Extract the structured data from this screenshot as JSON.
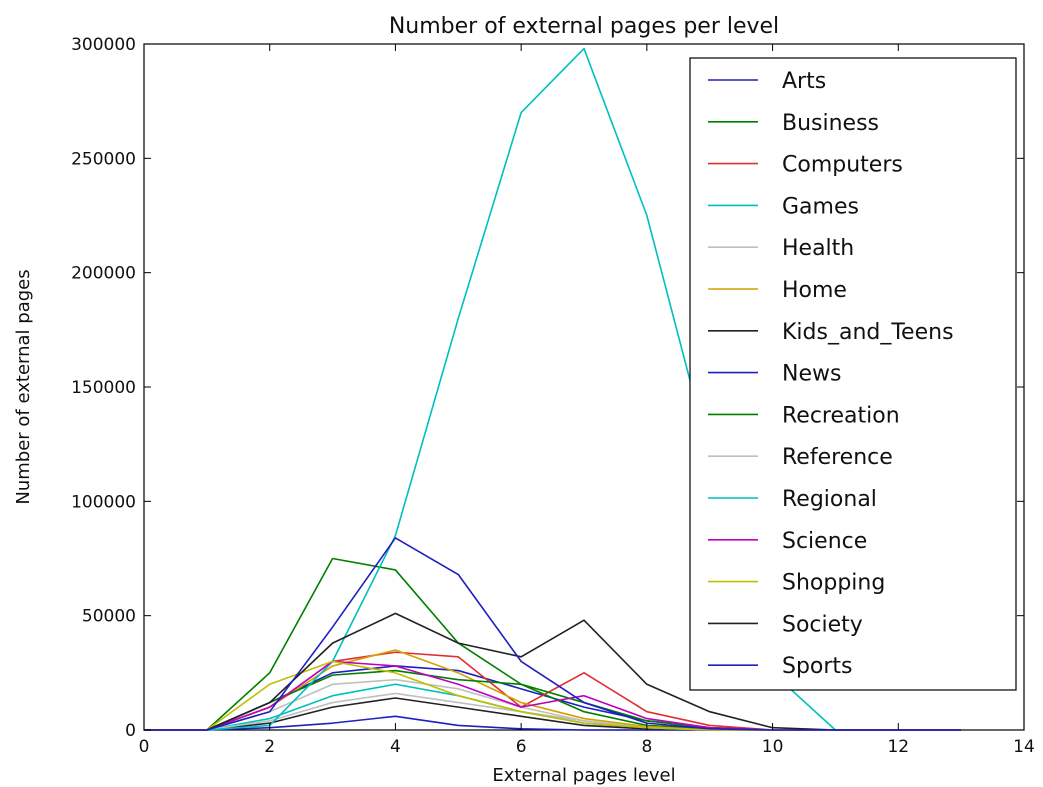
{
  "chart_data": {
    "type": "line",
    "title": "Number of external pages per level",
    "xlabel": "External pages level",
    "ylabel": "Number of external pages",
    "xlim": [
      0,
      14
    ],
    "ylim": [
      0,
      300000
    ],
    "xticks": [
      0,
      2,
      4,
      6,
      8,
      10,
      12,
      14
    ],
    "yticks": [
      0,
      50000,
      100000,
      150000,
      200000,
      250000,
      300000
    ],
    "legend_position": "upper-right",
    "grid": false,
    "x": [
      0,
      1,
      2,
      3,
      4,
      5,
      6,
      7,
      8,
      9,
      10,
      11,
      12,
      13
    ],
    "series": [
      {
        "name": "Arts",
        "color": "#1f1fbf",
        "values": [
          0,
          0,
          12000,
          25000,
          28000,
          26000,
          18000,
          10000,
          4000,
          1000,
          0,
          0,
          0,
          0
        ]
      },
      {
        "name": "Business",
        "color": "#007f00",
        "values": [
          0,
          0,
          25000,
          75000,
          70000,
          38000,
          20000,
          8000,
          2000,
          500,
          0,
          0,
          0,
          0
        ]
      },
      {
        "name": "Computers",
        "color": "#e03030",
        "values": [
          0,
          0,
          10000,
          30000,
          34000,
          32000,
          10000,
          25000,
          8000,
          2000,
          0,
          0,
          0,
          0
        ]
      },
      {
        "name": "Games",
        "color": "#00bfbf",
        "values": [
          0,
          0,
          5000,
          15000,
          20000,
          15000,
          8000,
          3000,
          1000,
          0,
          0,
          0,
          0,
          0
        ]
      },
      {
        "name": "Health",
        "color": "#bfbfbf",
        "values": [
          0,
          0,
          8000,
          20000,
          22000,
          18000,
          10000,
          4000,
          1000,
          0,
          0,
          0,
          0,
          0
        ]
      },
      {
        "name": "Home",
        "color": "#d4a000",
        "values": [
          0,
          0,
          10000,
          28000,
          35000,
          25000,
          12000,
          5000,
          1500,
          0,
          0,
          0,
          0,
          0
        ]
      },
      {
        "name": "Kids_and_Teens",
        "color": "#222222",
        "values": [
          0,
          0,
          3000,
          10000,
          14000,
          10000,
          6000,
          2000,
          500,
          0,
          0,
          0,
          0,
          0
        ]
      },
      {
        "name": "News",
        "color": "#1f1fbf",
        "values": [
          0,
          0,
          1000,
          3000,
          6000,
          2000,
          500,
          0,
          0,
          0,
          0,
          0,
          0,
          0
        ]
      },
      {
        "name": "Recreation",
        "color": "#007f00",
        "values": [
          0,
          0,
          12000,
          24000,
          26000,
          22000,
          20000,
          12000,
          4000,
          1000,
          0,
          0,
          0,
          0
        ]
      },
      {
        "name": "Reference",
        "color": "#bfbfbf",
        "values": [
          0,
          0,
          4000,
          12000,
          16000,
          12000,
          8000,
          4000,
          1000,
          0,
          0,
          0,
          0,
          0
        ]
      },
      {
        "name": "Regional",
        "color": "#00bfbf",
        "values": [
          0,
          0,
          2000,
          30000,
          85000,
          180000,
          270000,
          298000,
          225000,
          120000,
          25000,
          0,
          0,
          0
        ]
      },
      {
        "name": "Science",
        "color": "#bf00bf",
        "values": [
          0,
          0,
          10000,
          30000,
          28000,
          20000,
          10000,
          15000,
          5000,
          1000,
          0,
          0,
          0,
          0
        ]
      },
      {
        "name": "Shopping",
        "color": "#bfbf00",
        "values": [
          0,
          0,
          20000,
          30000,
          25000,
          15000,
          8000,
          3000,
          1000,
          0,
          0,
          0,
          0,
          0
        ]
      },
      {
        "name": "Society",
        "color": "#222222",
        "values": [
          0,
          0,
          12000,
          38000,
          51000,
          38000,
          32000,
          48000,
          20000,
          8000,
          1000,
          0,
          0,
          0
        ]
      },
      {
        "name": "Sports",
        "color": "#1f1fbf",
        "values": [
          0,
          0,
          8000,
          45000,
          84000,
          68000,
          30000,
          12000,
          3000,
          500,
          0,
          0,
          0,
          0
        ]
      }
    ]
  }
}
